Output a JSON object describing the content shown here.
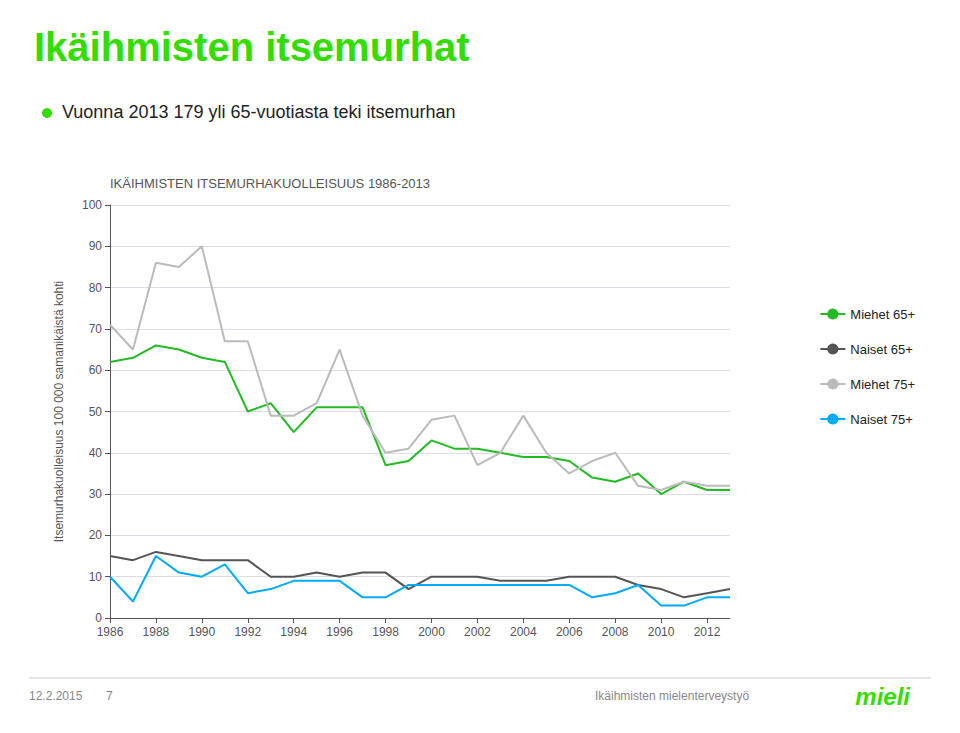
{
  "chart_data": {
    "type": "line",
    "title": "Ikäihmisten itsemurhat",
    "subtitle": "Vuonna 2013 179 yli 65-vuotiasta teki itsemurhan",
    "annotations": [
      "IKÄIHMISTEN ITSEMURHAKUOLLEISUUS 1986-2013",
      "12.2.2015",
      "7",
      "Ikäihmisten mielenterveystyö",
      "mieli"
    ],
    "ylabel": "Itsemurhakuolleisuus 100 000 samanikäistä kohti",
    "x": [
      1986,
      1987,
      1988,
      1989,
      1990,
      1991,
      1992,
      1993,
      1994,
      1995,
      1996,
      1997,
      1998,
      1999,
      2000,
      2001,
      2002,
      2003,
      2004,
      2005,
      2006,
      2007,
      2008,
      2009,
      2010,
      2011,
      2012,
      2013
    ],
    "series": [
      {
        "name": "Miehet 65+",
        "color": "#22bb22",
        "values": [
          62,
          63,
          66,
          65,
          63,
          62,
          50,
          52,
          45,
          51,
          51,
          51,
          37,
          38,
          43,
          41,
          41,
          40,
          39,
          39,
          38,
          34,
          33,
          35,
          30,
          33,
          31,
          31
        ]
      },
      {
        "name": "Naiset 65+",
        "color": "#555555",
        "values": [
          15,
          14,
          16,
          15,
          14,
          14,
          14,
          10,
          10,
          11,
          10,
          11,
          11,
          7,
          10,
          10,
          10,
          9,
          9,
          9,
          10,
          10,
          10,
          8,
          7,
          5,
          6,
          7
        ]
      },
      {
        "name": "Miehet 75+",
        "color": "#bbbbbb",
        "values": [
          71,
          65,
          86,
          85,
          90,
          67,
          67,
          49,
          49,
          52,
          65,
          49,
          40,
          41,
          48,
          49,
          37,
          40,
          49,
          40,
          35,
          38,
          40,
          32,
          31,
          33,
          32,
          32
        ]
      },
      {
        "name": "Naiset 75+",
        "color": "#00aaff",
        "values": [
          10,
          4,
          15,
          11,
          10,
          13,
          6,
          7,
          9,
          9,
          9,
          5,
          5,
          8,
          8,
          8,
          8,
          8,
          8,
          8,
          8,
          5,
          6,
          8,
          3,
          3,
          5,
          5
        ]
      }
    ],
    "xlim": [
      1986,
      2013
    ],
    "xticks": [
      1986,
      1988,
      1990,
      1992,
      1994,
      1996,
      1998,
      2000,
      2002,
      2004,
      2006,
      2008,
      2010,
      2012
    ],
    "ylim": [
      0,
      100
    ],
    "yticks": [
      0,
      10,
      20,
      30,
      40,
      50,
      60,
      70,
      80,
      90,
      100
    ],
    "grid": true,
    "legend": "right"
  }
}
